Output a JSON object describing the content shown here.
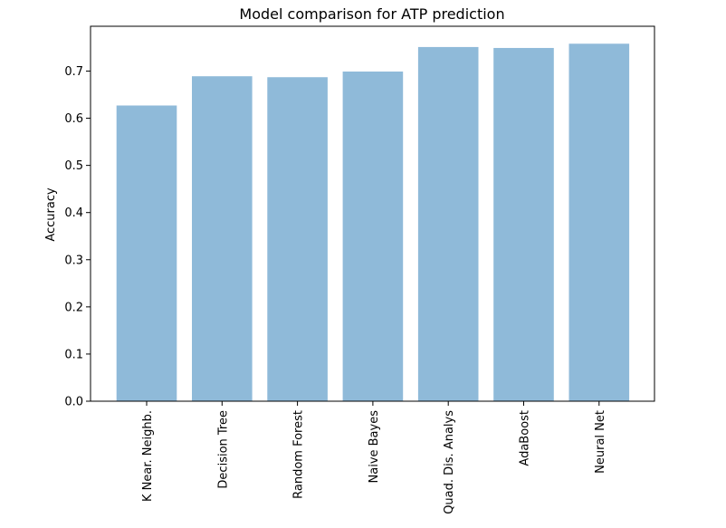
{
  "chart_data": {
    "type": "bar",
    "title": "Model comparison for ATP prediction",
    "xlabel": "",
    "ylabel": "Accuracy",
    "categories": [
      "K Near. Neighb.",
      "Decision Tree",
      "Random Forest",
      "Naive Bayes",
      "Quad. Dis. Analys",
      "AdaBoost",
      "Neural Net"
    ],
    "values": [
      0.627,
      0.689,
      0.687,
      0.699,
      0.751,
      0.749,
      0.758
    ],
    "ylim": [
      0,
      0.795
    ],
    "yticks": [
      0.0,
      0.1,
      0.2,
      0.3,
      0.4,
      0.5,
      0.6,
      0.7
    ],
    "bar_color": "#8fbad9",
    "grid": false,
    "legend": "none"
  }
}
